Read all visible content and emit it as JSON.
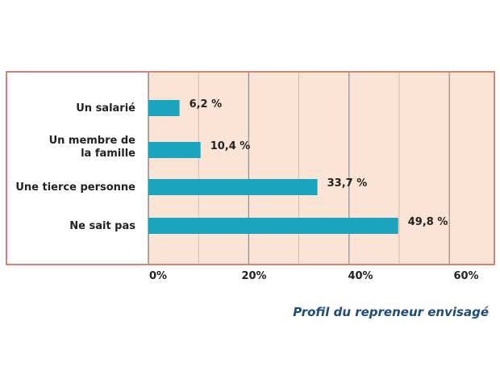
{
  "chart_data": {
    "type": "bar",
    "orientation": "horizontal",
    "title": "Profil du repreneur envisagé",
    "categories": [
      [
        "Un salarié"
      ],
      [
        "Un membre de",
        "la famille"
      ],
      [
        "Une tierce personne"
      ],
      [
        "Ne sait pas"
      ]
    ],
    "values": [
      6.2,
      10.4,
      33.7,
      49.8
    ],
    "value_labels": [
      "6,2 %",
      "10,4 %",
      "33,7 %",
      "49,8 %"
    ],
    "xlim": [
      0,
      65
    ],
    "xticks": [
      0,
      20,
      40,
      60
    ],
    "xtick_labels": [
      "0%",
      "20%",
      "40%",
      "60%"
    ],
    "grid": true,
    "colors": {
      "bar": "#1ba4bd",
      "plot_background": "#fbe4d6",
      "frame": "#c45a45",
      "grid": "#b0b0b0"
    }
  }
}
